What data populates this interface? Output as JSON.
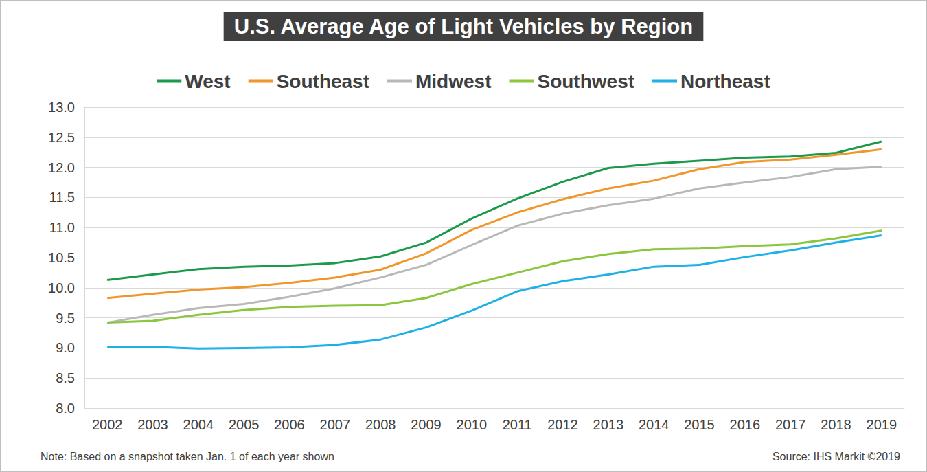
{
  "chart_data": {
    "type": "line",
    "title": "U.S. Average Age of Light Vehicles by Region",
    "note": "Note: Based on a snapshot taken Jan. 1 of each year shown",
    "source": "Source: IHS Markit ©2019",
    "categories": [
      "2002",
      "2003",
      "2004",
      "2005",
      "2006",
      "2007",
      "2008",
      "2009",
      "2010",
      "2011",
      "2012",
      "2013",
      "2014",
      "2015",
      "2016",
      "2017",
      "2018",
      "2019"
    ],
    "series": [
      {
        "name": "West",
        "color": "#1a9a4a",
        "values": [
          10.13,
          10.22,
          10.31,
          10.35,
          10.37,
          10.41,
          10.52,
          10.75,
          11.15,
          11.48,
          11.76,
          11.99,
          12.06,
          12.11,
          12.16,
          12.18,
          12.24,
          12.43
        ]
      },
      {
        "name": "Southeast",
        "color": "#f0962a",
        "values": [
          9.83,
          9.9,
          9.97,
          10.01,
          10.08,
          10.17,
          10.3,
          10.57,
          10.96,
          11.25,
          11.47,
          11.65,
          11.78,
          11.97,
          12.09,
          12.13,
          12.21,
          12.3
        ]
      },
      {
        "name": "Midwest",
        "color": "#b8b8b8",
        "values": [
          9.42,
          9.55,
          9.66,
          9.73,
          9.85,
          9.99,
          10.17,
          10.38,
          10.71,
          11.03,
          11.23,
          11.37,
          11.48,
          11.65,
          11.75,
          11.84,
          11.97,
          12.01
        ]
      },
      {
        "name": "Southwest",
        "color": "#8cc63f",
        "values": [
          9.42,
          9.45,
          9.55,
          9.63,
          9.68,
          9.7,
          9.71,
          9.83,
          10.06,
          10.25,
          10.44,
          10.56,
          10.64,
          10.65,
          10.69,
          10.72,
          10.82,
          10.95
        ]
      },
      {
        "name": "Northeast",
        "color": "#1fb0e6",
        "values": [
          9.01,
          9.02,
          8.99,
          9.0,
          9.01,
          9.05,
          9.14,
          9.34,
          9.62,
          9.94,
          10.11,
          10.22,
          10.35,
          10.38,
          10.51,
          10.62,
          10.75,
          10.87
        ]
      }
    ],
    "ylim": [
      8,
      13
    ],
    "yticks": [
      {
        "value": 8,
        "label": "8.0"
      },
      8.5,
      {
        "value": 9,
        "label": "9.0"
      },
      9.5,
      {
        "value": 10,
        "label": "10.0"
      },
      10.5,
      {
        "value": 11,
        "label": "11.0"
      },
      11.5,
      {
        "value": 12,
        "label": "12.0"
      },
      12.5,
      {
        "value": 13,
        "label": "13.0"
      }
    ],
    "grid": true,
    "legend": "top"
  }
}
